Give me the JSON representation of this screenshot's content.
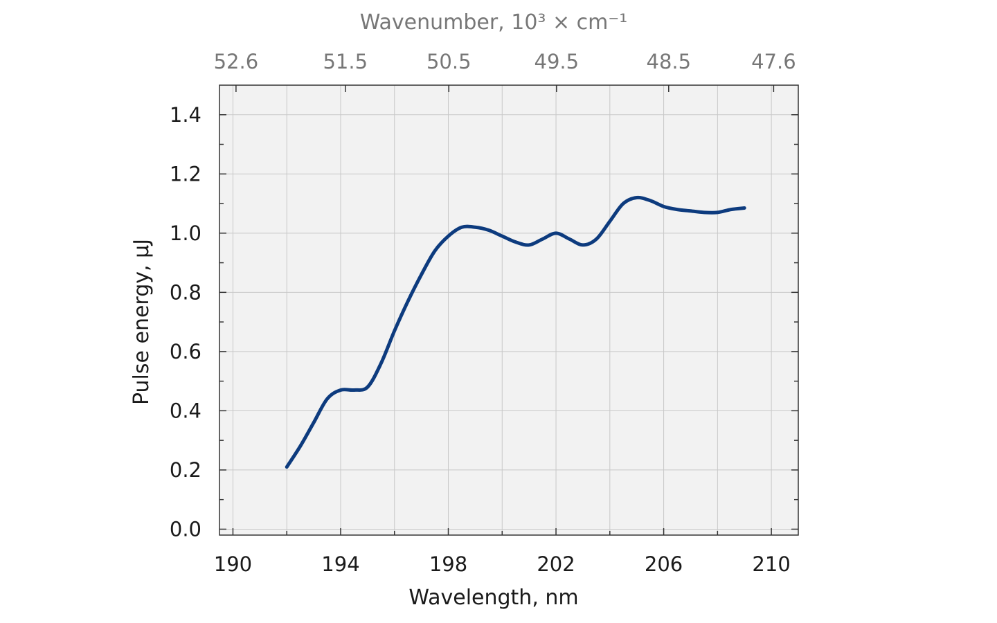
{
  "chart_data": {
    "type": "line",
    "title": "",
    "xlabel": "Wavelength, nm",
    "ylabel": "Pulse energy, µJ",
    "top_xlabel": "Wavenumber, 10³ × cm⁻¹",
    "xlim": [
      189.5,
      211
    ],
    "ylim": [
      -0.02,
      1.5
    ],
    "x_ticks": [
      190,
      194,
      198,
      202,
      206,
      210
    ],
    "x_tick_labels": [
      "190",
      "194",
      "198",
      "202",
      "206",
      "210"
    ],
    "y_ticks": [
      0.0,
      0.2,
      0.4,
      0.6,
      0.8,
      1.0,
      1.2,
      1.4
    ],
    "y_tick_labels": [
      "0.0",
      "0.2",
      "0.4",
      "0.6",
      "0.8",
      "1.0",
      "1.2",
      "1.4"
    ],
    "top_ticks_wavenumber": [
      52.6,
      51.5,
      50.5,
      49.5,
      48.5,
      47.6
    ],
    "top_tick_labels": [
      "52.6",
      "51.5",
      "50.5",
      "49.5",
      "48.5",
      "47.6"
    ],
    "grid": true,
    "colors": {
      "line": "#0d3b7e",
      "plot_background": "#f2f2f2",
      "grid": "#c8c8c8",
      "top_axis_text": "#777777"
    },
    "series": [
      {
        "x": [
          192.0,
          192.5,
          193.0,
          193.5,
          194.0,
          194.5,
          195.0,
          195.5,
          196.0,
          196.5,
          197.0,
          197.5,
          198.0,
          198.5,
          199.0,
          199.5,
          200.0,
          200.5,
          201.0,
          201.5,
          202.0,
          202.5,
          203.0,
          203.5,
          204.0,
          204.5,
          205.0,
          205.5,
          206.0,
          206.5,
          207.0,
          207.5,
          208.0,
          208.5,
          209.0
        ],
        "y": [
          0.21,
          0.28,
          0.36,
          0.44,
          0.47,
          0.47,
          0.48,
          0.56,
          0.67,
          0.77,
          0.86,
          0.94,
          0.99,
          1.02,
          1.02,
          1.01,
          0.99,
          0.97,
          0.96,
          0.98,
          1.0,
          0.98,
          0.96,
          0.98,
          1.04,
          1.1,
          1.12,
          1.11,
          1.09,
          1.08,
          1.075,
          1.07,
          1.07,
          1.08,
          1.085
        ]
      }
    ]
  }
}
